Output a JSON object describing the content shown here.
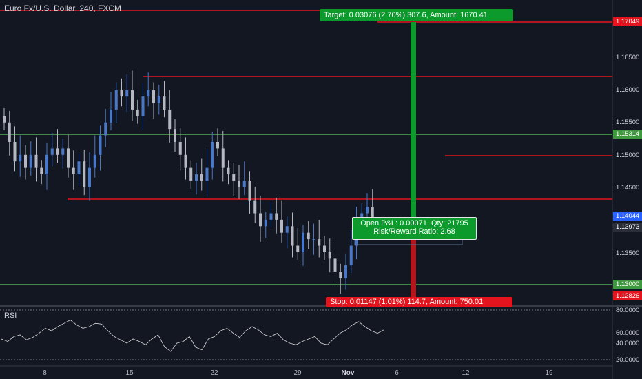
{
  "header": {
    "title": "Euro Fx/U.S. Dollar, 240, FXCM"
  },
  "position": {
    "target_label": "Target: 0.03076 (2.70%) 307.6, Amount: 1670.41",
    "stop_label": "Stop: 0.01147 (1.01%) 114.7, Amount: 750.01",
    "pnl_label": "Open P&L: 0.00071, Qty: 21795",
    "ratio_label": "Risk/Reward Ratio: 2.68"
  },
  "price_axis": {
    "labels": [
      "1.16500",
      "1.16000",
      "1.15500",
      "1.15000",
      "1.14500",
      "1.13500"
    ],
    "tags": {
      "t1": "1.17049",
      "t2": "1.15314",
      "t3": "1.14044",
      "t4": "1.13973",
      "t5": "1.13000",
      "t6": "1.12826"
    }
  },
  "rsi": {
    "title": "RSI",
    "labels": [
      "80.0000",
      "60.0000",
      "40.0000",
      "20.0000"
    ]
  },
  "time_axis": {
    "labels": [
      "8",
      "15",
      "22",
      "29",
      "Nov",
      "6",
      "12",
      "19"
    ]
  },
  "colors": {
    "background": "#131722",
    "up_candle": "#4a78c9",
    "down_candle": "#b5b8c0",
    "resistance_line": "#e4141e",
    "support_line": "#4caf50",
    "target_green": "#0b9a2b",
    "stop_red": "#e4141e"
  },
  "chart_data": {
    "type": "candlestick",
    "symbol": "Euro Fx/U.S. Dollar, 240, FXCM",
    "y_range": [
      1.1275,
      1.172
    ],
    "horizontal_levels": {
      "red": [
        1.17,
        1.162,
        1.15,
        1.1432
      ],
      "green": [
        1.15314,
        1.13
      ]
    },
    "position": {
      "entry": 1.13973,
      "target": 1.17049,
      "stop": 1.12826
    },
    "close_path": [
      1.155,
      1.152,
      1.149,
      1.15,
      1.148,
      1.15,
      1.148,
      1.147,
      1.15,
      1.151,
      1.15,
      1.151,
      1.148,
      1.147,
      1.149,
      1.145,
      1.148,
      1.15,
      1.153,
      1.155,
      1.157,
      1.16,
      1.159,
      1.16,
      1.157,
      1.156,
      1.159,
      1.16,
      1.158,
      1.159,
      1.157,
      1.154,
      1.152,
      1.15,
      1.148,
      1.146,
      1.147,
      1.146,
      1.148,
      1.152,
      1.151,
      1.148,
      1.147,
      1.146,
      1.145,
      1.146,
      1.143,
      1.141,
      1.139,
      1.14,
      1.141,
      1.14,
      1.138,
      1.139,
      1.136,
      1.135,
      1.138,
      1.137,
      1.137,
      1.136,
      1.135,
      1.134,
      1.132,
      1.131,
      1.133,
      1.136,
      1.139,
      1.141,
      1.142,
      1.14
    ],
    "rsi_path": [
      45,
      42,
      48,
      50,
      44,
      47,
      52,
      58,
      55,
      60,
      64,
      68,
      62,
      58,
      60,
      64,
      63,
      55,
      48,
      44,
      40,
      45,
      42,
      38,
      45,
      50,
      36,
      30,
      40,
      42,
      48,
      35,
      32,
      45,
      48,
      55,
      58,
      52,
      47,
      55,
      60,
      56,
      50,
      48,
      52,
      44,
      40,
      38,
      42,
      45,
      48,
      40,
      38,
      45,
      52,
      56,
      62,
      66,
      60,
      55,
      52,
      56
    ],
    "rsi_levels": [
      80,
      20
    ]
  }
}
